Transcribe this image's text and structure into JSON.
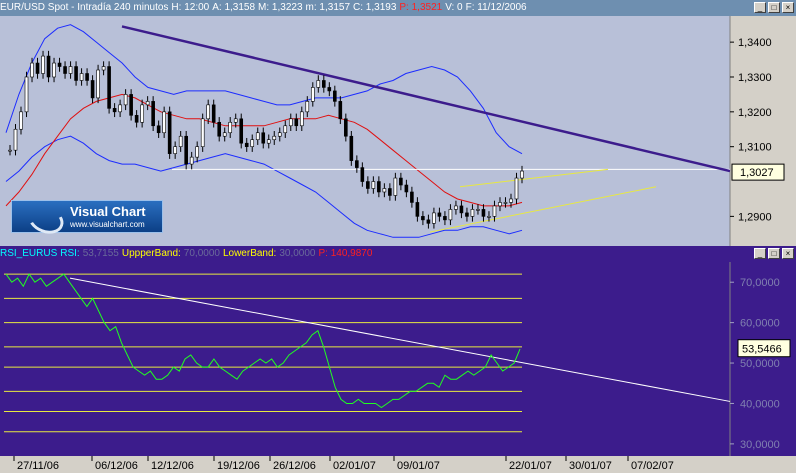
{
  "price_pane": {
    "title_parts": [
      {
        "text": "EUR/USD Spot - Intradía 240 minutos",
        "color": "#ffffff"
      },
      {
        "text": "H: 12:00",
        "color": "#ffffff"
      },
      {
        "text": "A: 1,3158",
        "color": "#ffffff"
      },
      {
        "text": "M: 1,3223",
        "color": "#ffffff"
      },
      {
        "text": "m: 1,3157",
        "color": "#ffffff"
      },
      {
        "text": "C: 1,3193",
        "color": "#ffffff"
      },
      {
        "text": "P: 1,3521",
        "color": "#ff2020"
      },
      {
        "text": "V: 0",
        "color": "#ffffff"
      },
      {
        "text": "F: 11/12/2006",
        "color": "#ffffff"
      }
    ],
    "last_value_label": "1,3027",
    "logo": {
      "brand": "Visual Chart",
      "url": "www.visualchart.com"
    }
  },
  "rsi_pane": {
    "title_parts": [
      {
        "text": "RSI_EURUS",
        "color": "#00ffff"
      },
      {
        "text": "RSI:",
        "color": "#00ffff"
      },
      {
        "text": "53,7155",
        "color": "#6a6a9a"
      },
      {
        "text": "UppperBand:",
        "color": "#ffff00"
      },
      {
        "text": "70,0000",
        "color": "#6a6a9a"
      },
      {
        "text": "LowerBand:",
        "color": "#ffff00"
      },
      {
        "text": "30,0000",
        "color": "#6a6a9a"
      },
      {
        "text": "P: 140,9870",
        "color": "#ff2020"
      }
    ],
    "last_value_label": "53,5466"
  },
  "window_buttons": [
    "_",
    "□",
    "×"
  ],
  "colors": {
    "price_bg": "#b8c0d8",
    "rsi_bg": "#3c1c8c",
    "candle": "#000000",
    "bollinger": "#1c2cff",
    "ma": "#e01010",
    "trend": "#3c1c8c",
    "wedge": "#e8e840",
    "rsi_line": "#20ff20",
    "band": "#e8e840",
    "value_box": "#ffffe0"
  },
  "chart_data": [
    {
      "type": "line",
      "name": "price",
      "y_ticks": [
        "1,3400",
        "1,3300",
        "1,3200",
        "1,3100",
        "1,2900"
      ],
      "y_tick_values": [
        1.34,
        1.33,
        1.32,
        1.31,
        1.29
      ],
      "ylim": [
        1.2815,
        1.3475
      ],
      "n": 120,
      "close": [
        1.309,
        1.315,
        1.32,
        1.33,
        1.334,
        1.331,
        1.336,
        1.33,
        1.334,
        1.333,
        1.331,
        1.333,
        1.329,
        1.331,
        1.329,
        1.324,
        1.332,
        1.333,
        1.321,
        1.32,
        1.322,
        1.325,
        1.319,
        1.317,
        1.322,
        1.323,
        1.316,
        1.314,
        1.32,
        1.308,
        1.31,
        1.313,
        1.305,
        1.307,
        1.31,
        1.318,
        1.322,
        1.317,
        1.313,
        1.314,
        1.317,
        1.318,
        1.311,
        1.31,
        1.312,
        1.314,
        1.311,
        1.312,
        1.313,
        1.314,
        1.316,
        1.318,
        1.316,
        1.32,
        1.323,
        1.327,
        1.329,
        1.327,
        1.326,
        1.323,
        1.318,
        1.313,
        1.306,
        1.304,
        1.3,
        1.298,
        1.3,
        1.297,
        1.298,
        1.296,
        1.301,
        1.299,
        1.297,
        1.294,
        1.29,
        1.289,
        1.288,
        1.291,
        1.29,
        1.289,
        1.292,
        1.293,
        1.291,
        1.29,
        1.292,
        1.292,
        1.29,
        1.29,
        1.293,
        1.294,
        1.294,
        1.295,
        1.301,
        1.303
      ],
      "bollinger_upper": [
        1.314,
        1.325,
        1.334,
        1.341,
        1.344,
        1.345,
        1.343,
        1.34,
        1.337,
        1.334,
        1.33,
        1.327,
        1.326,
        1.325,
        1.326,
        1.326,
        1.326,
        1.326,
        1.325,
        1.324,
        1.323,
        1.322,
        1.322,
        1.323,
        1.324,
        1.324,
        1.324,
        1.325,
        1.326,
        1.328,
        1.329,
        1.331,
        1.332,
        1.333,
        1.332,
        1.33,
        1.326,
        1.321,
        1.314,
        1.31,
        1.308
      ],
      "bollinger_lower": [
        1.3,
        1.303,
        1.307,
        1.31,
        1.312,
        1.313,
        1.311,
        1.308,
        1.306,
        1.305,
        1.305,
        1.304,
        1.303,
        1.304,
        1.305,
        1.306,
        1.307,
        1.308,
        1.307,
        1.306,
        1.305,
        1.303,
        1.301,
        1.299,
        1.297,
        1.294,
        1.291,
        1.288,
        1.286,
        1.285,
        1.284,
        1.284,
        1.284,
        1.285,
        1.286,
        1.286,
        1.287,
        1.287,
        1.286,
        1.285,
        1.286
      ],
      "moving_average": [
        1.293,
        1.297,
        1.302,
        1.308,
        1.313,
        1.318,
        1.321,
        1.323,
        1.324,
        1.325,
        1.324,
        1.322,
        1.32,
        1.319,
        1.318,
        1.318,
        1.317,
        1.316,
        1.316,
        1.316,
        1.316,
        1.317,
        1.318,
        1.318,
        1.318,
        1.319,
        1.318,
        1.317,
        1.315,
        1.312,
        1.309,
        1.306,
        1.303,
        1.3,
        1.297,
        1.295,
        1.294,
        1.293,
        1.293,
        1.293,
        1.294
      ],
      "reference_level": 1.3035
    },
    {
      "type": "line",
      "name": "RSI",
      "y_ticks": [
        "70,0000",
        "60,0000",
        "50,0000",
        "40,0000",
        "30,0000"
      ],
      "y_tick_values": [
        70,
        60,
        50,
        40,
        30
      ],
      "band_levels": [
        72,
        66,
        60,
        54,
        49,
        43,
        38,
        33
      ],
      "ylim": [
        27,
        75
      ],
      "values": [
        72,
        70,
        71,
        69,
        72,
        70,
        71,
        69,
        70,
        71,
        72,
        70,
        68,
        66,
        64,
        66,
        63,
        60,
        58,
        59,
        55,
        52,
        49,
        48,
        47,
        48,
        46,
        46,
        47,
        49,
        48,
        51,
        52,
        50,
        49,
        49,
        51,
        49,
        48,
        47,
        46,
        48,
        49,
        50,
        51,
        50,
        51,
        49,
        50,
        52,
        53,
        54,
        55,
        57,
        58,
        54,
        49,
        44,
        41,
        40,
        40,
        41,
        40,
        40,
        40,
        39,
        40,
        41,
        41,
        42,
        43,
        43,
        44,
        45,
        45,
        44,
        47,
        46,
        46,
        47,
        48,
        47,
        48,
        49,
        52,
        50,
        48,
        49,
        50,
        53.5
      ]
    }
  ],
  "x_axis": {
    "labels": [
      "27/11/06",
      "06/12/06",
      "12/12/06",
      "19/12/06",
      "26/12/06",
      "02/01/07",
      "09/01/07",
      "22/01/07",
      "30/01/07",
      "07/02/07"
    ]
  }
}
